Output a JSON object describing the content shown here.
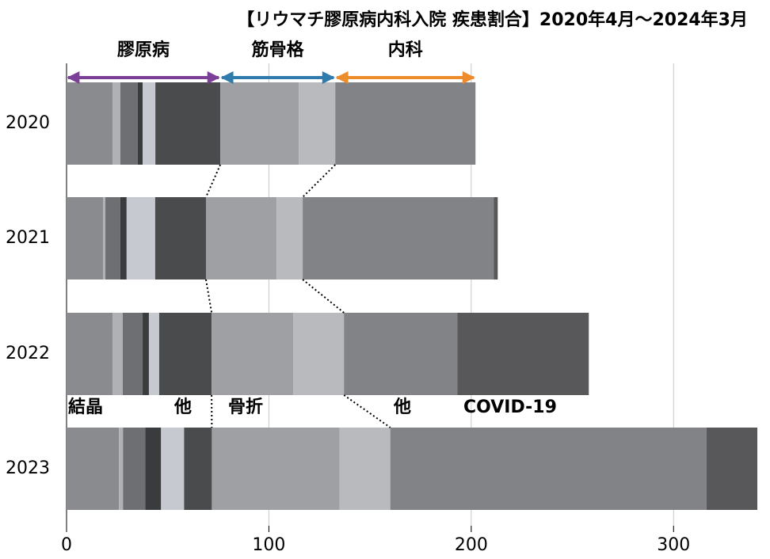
{
  "chart_data": {
    "type": "stacked-barh",
    "title": "【リウマチ膠原病内科入院 疾患割合】2020年4月～2024年3月",
    "categories": [
      "2020",
      "2021",
      "2022",
      "2023"
    ],
    "series": [
      {
        "name": "結晶",
        "color": "#8a8b8e",
        "values": [
          22.7,
          18.0,
          22.7,
          25.9
        ]
      },
      {
        "color": "#b0b1b5",
        "values": [
          3.9,
          1.2,
          5.1,
          2.0
        ]
      },
      {
        "color": "#6e6f72",
        "values": [
          8.6,
          7.4,
          9.8,
          11.0
        ]
      },
      {
        "color": "#3a3b3d",
        "values": [
          2.4,
          3.1,
          3.1,
          7.8
        ]
      },
      {
        "color": "#c6c9d0",
        "values": [
          6.3,
          14.1,
          5.1,
          11.4
        ]
      },
      {
        "name": "他",
        "color": "#4a4b4d",
        "values": [
          32.1,
          25.1,
          25.9,
          13.7
        ]
      },
      {
        "name": "骨折",
        "color": "#9fa0a3",
        "values": [
          38.8,
          34.9,
          40.3,
          63.1
        ]
      },
      {
        "color": "#b9babd",
        "values": [
          18.0,
          12.9,
          25.1,
          25.1
        ]
      },
      {
        "name": "他",
        "color": "#828386",
        "values": [
          69.3,
          94.4,
          56.0,
          156.3
        ]
      },
      {
        "name": "COVID-19",
        "color": "#58585a",
        "values": [
          0,
          2.0,
          65.0,
          25.1
        ]
      }
    ],
    "groups": [
      {
        "label": "膠原病",
        "color": "#7b3f98"
      },
      {
        "label": "筋骨格",
        "color": "#2f7bab"
      },
      {
        "label": "内科",
        "color": "#ec8c2a"
      }
    ],
    "xlim": [
      0,
      341
    ],
    "xticks": [
      0,
      100,
      200,
      300
    ],
    "grid": true
  }
}
